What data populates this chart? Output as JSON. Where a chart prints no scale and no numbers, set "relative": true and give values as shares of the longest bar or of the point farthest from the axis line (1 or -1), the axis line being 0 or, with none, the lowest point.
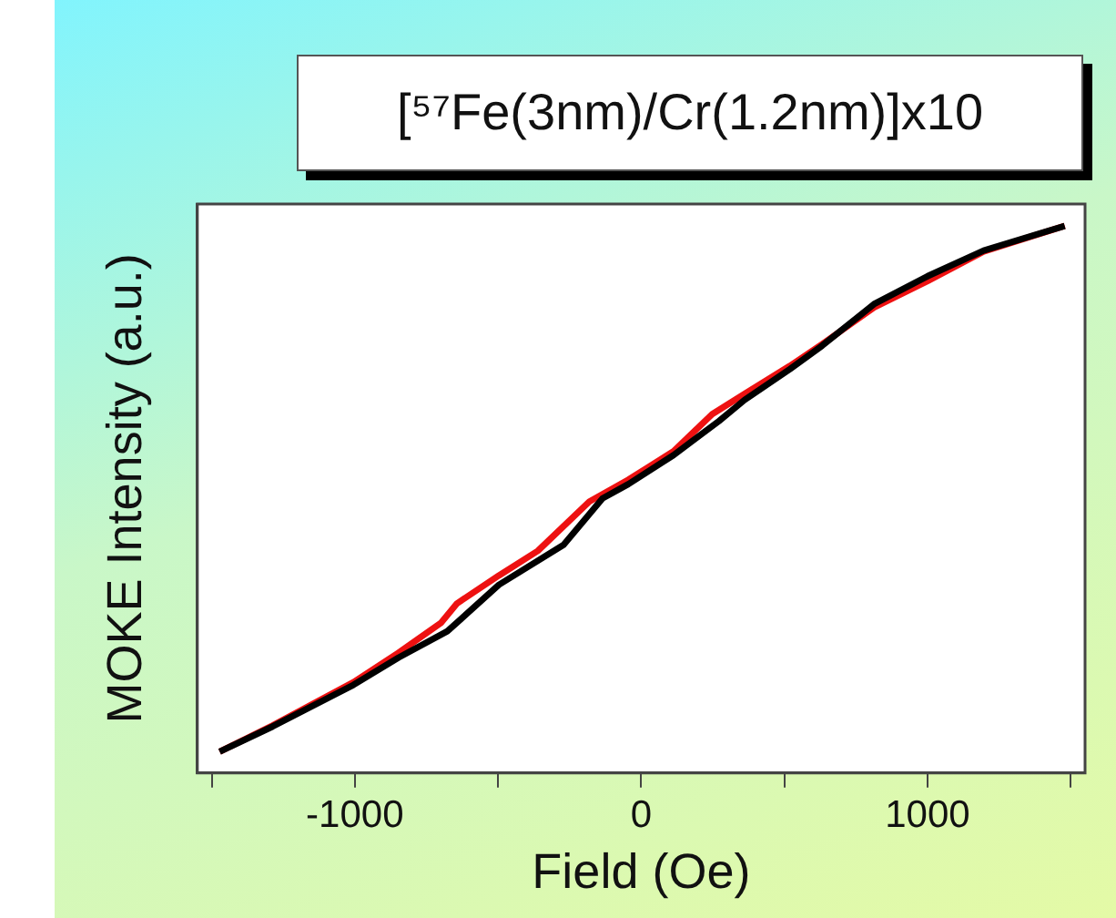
{
  "chart_data": {
    "type": "line",
    "title": "[⁵⁷Fe(3nm)/Cr(1.2nm)]x10",
    "xlabel": "Field (Oe)",
    "ylabel": "MOKE Intensity (a.u.)",
    "relative": true,
    "xlim": [
      -1550,
      1550
    ],
    "xticks": [
      {
        "value": -1500,
        "label": null
      },
      -1000,
      {
        "value": -500,
        "label": null
      },
      0,
      {
        "value": 500,
        "label": null
      },
      1000,
      {
        "value": 1500,
        "label": null
      }
    ],
    "grid": false,
    "legend": false,
    "marker": "none",
    "line_style": "solid",
    "series": [
      {
        "color": "#000000",
        "x": [
          -1472,
          -1287,
          -1005,
          -847,
          -677,
          -497,
          -271,
          -135,
          -45,
          113,
          271,
          361,
          519,
          632,
          813,
          1000,
          1196,
          1479
        ],
        "values": [
          0.039,
          0.085,
          0.161,
          0.211,
          0.259,
          0.344,
          0.417,
          0.502,
          0.528,
          0.581,
          0.643,
          0.682,
          0.738,
          0.781,
          0.857,
          0.908,
          0.955,
          1
        ]
      },
      {
        "color": "#ee1111",
        "x": [
          -1472,
          -1287,
          -1005,
          -847,
          -700,
          -643,
          -497,
          -361,
          -181,
          -45,
          113,
          248,
          361,
          519,
          632,
          813,
          1000,
          1196,
          1479
        ],
        "values": [
          0.039,
          0.087,
          0.166,
          0.22,
          0.274,
          0.31,
          0.361,
          0.406,
          0.496,
          0.536,
          0.588,
          0.656,
          0.693,
          0.744,
          0.784,
          0.851,
          0.899,
          0.953,
          1
        ]
      }
    ]
  }
}
